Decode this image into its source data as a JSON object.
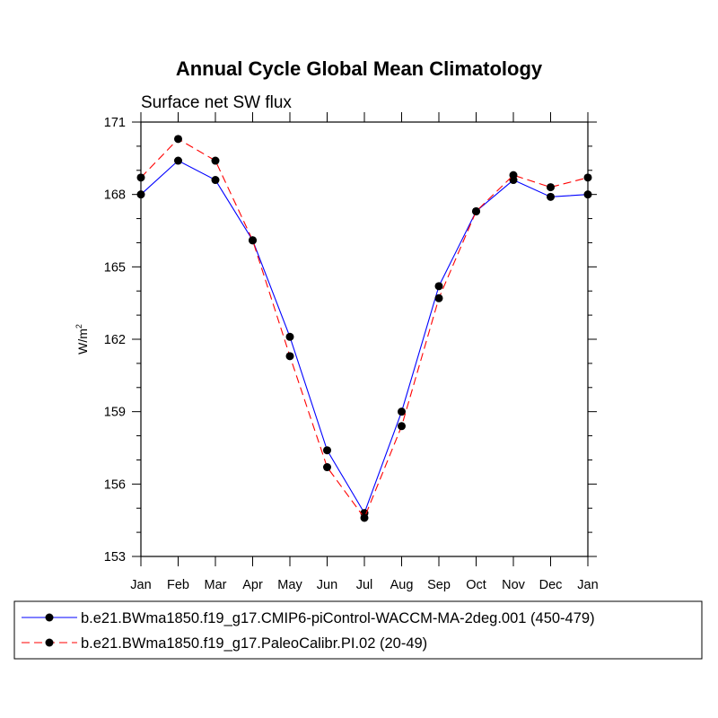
{
  "chart_data": {
    "type": "line",
    "title": "Annual Cycle Global Mean Climatology",
    "subtitle": "Surface net SW flux",
    "ylabel": "W/m",
    "ylabel_superscript": "2",
    "ylim": [
      153,
      171
    ],
    "yticks": [
      153,
      156,
      159,
      162,
      165,
      168,
      171
    ],
    "categories": [
      "Jan",
      "Feb",
      "Mar",
      "Apr",
      "May",
      "Jun",
      "Jul",
      "Aug",
      "Sep",
      "Oct",
      "Nov",
      "Dec",
      "Jan"
    ],
    "series": [
      {
        "name": "b.e21.BWma1850.f19_g17.CMIP6-piControl-WACCM-MA-2deg.001 (450-479)",
        "color": "#0000ff",
        "dash": "solid",
        "values": [
          168.0,
          169.4,
          168.6,
          166.1,
          162.1,
          157.4,
          154.8,
          159.0,
          164.2,
          167.3,
          168.6,
          167.9,
          168.0
        ]
      },
      {
        "name": "b.e21.BWma1850.f19_g17.PaleoCalibr.PI.02 (20-49)",
        "color": "#ff0000",
        "dash": "dashed",
        "values": [
          168.7,
          170.3,
          169.4,
          166.1,
          161.3,
          156.7,
          154.6,
          158.4,
          163.7,
          167.3,
          168.8,
          168.3,
          168.7
        ]
      }
    ]
  }
}
